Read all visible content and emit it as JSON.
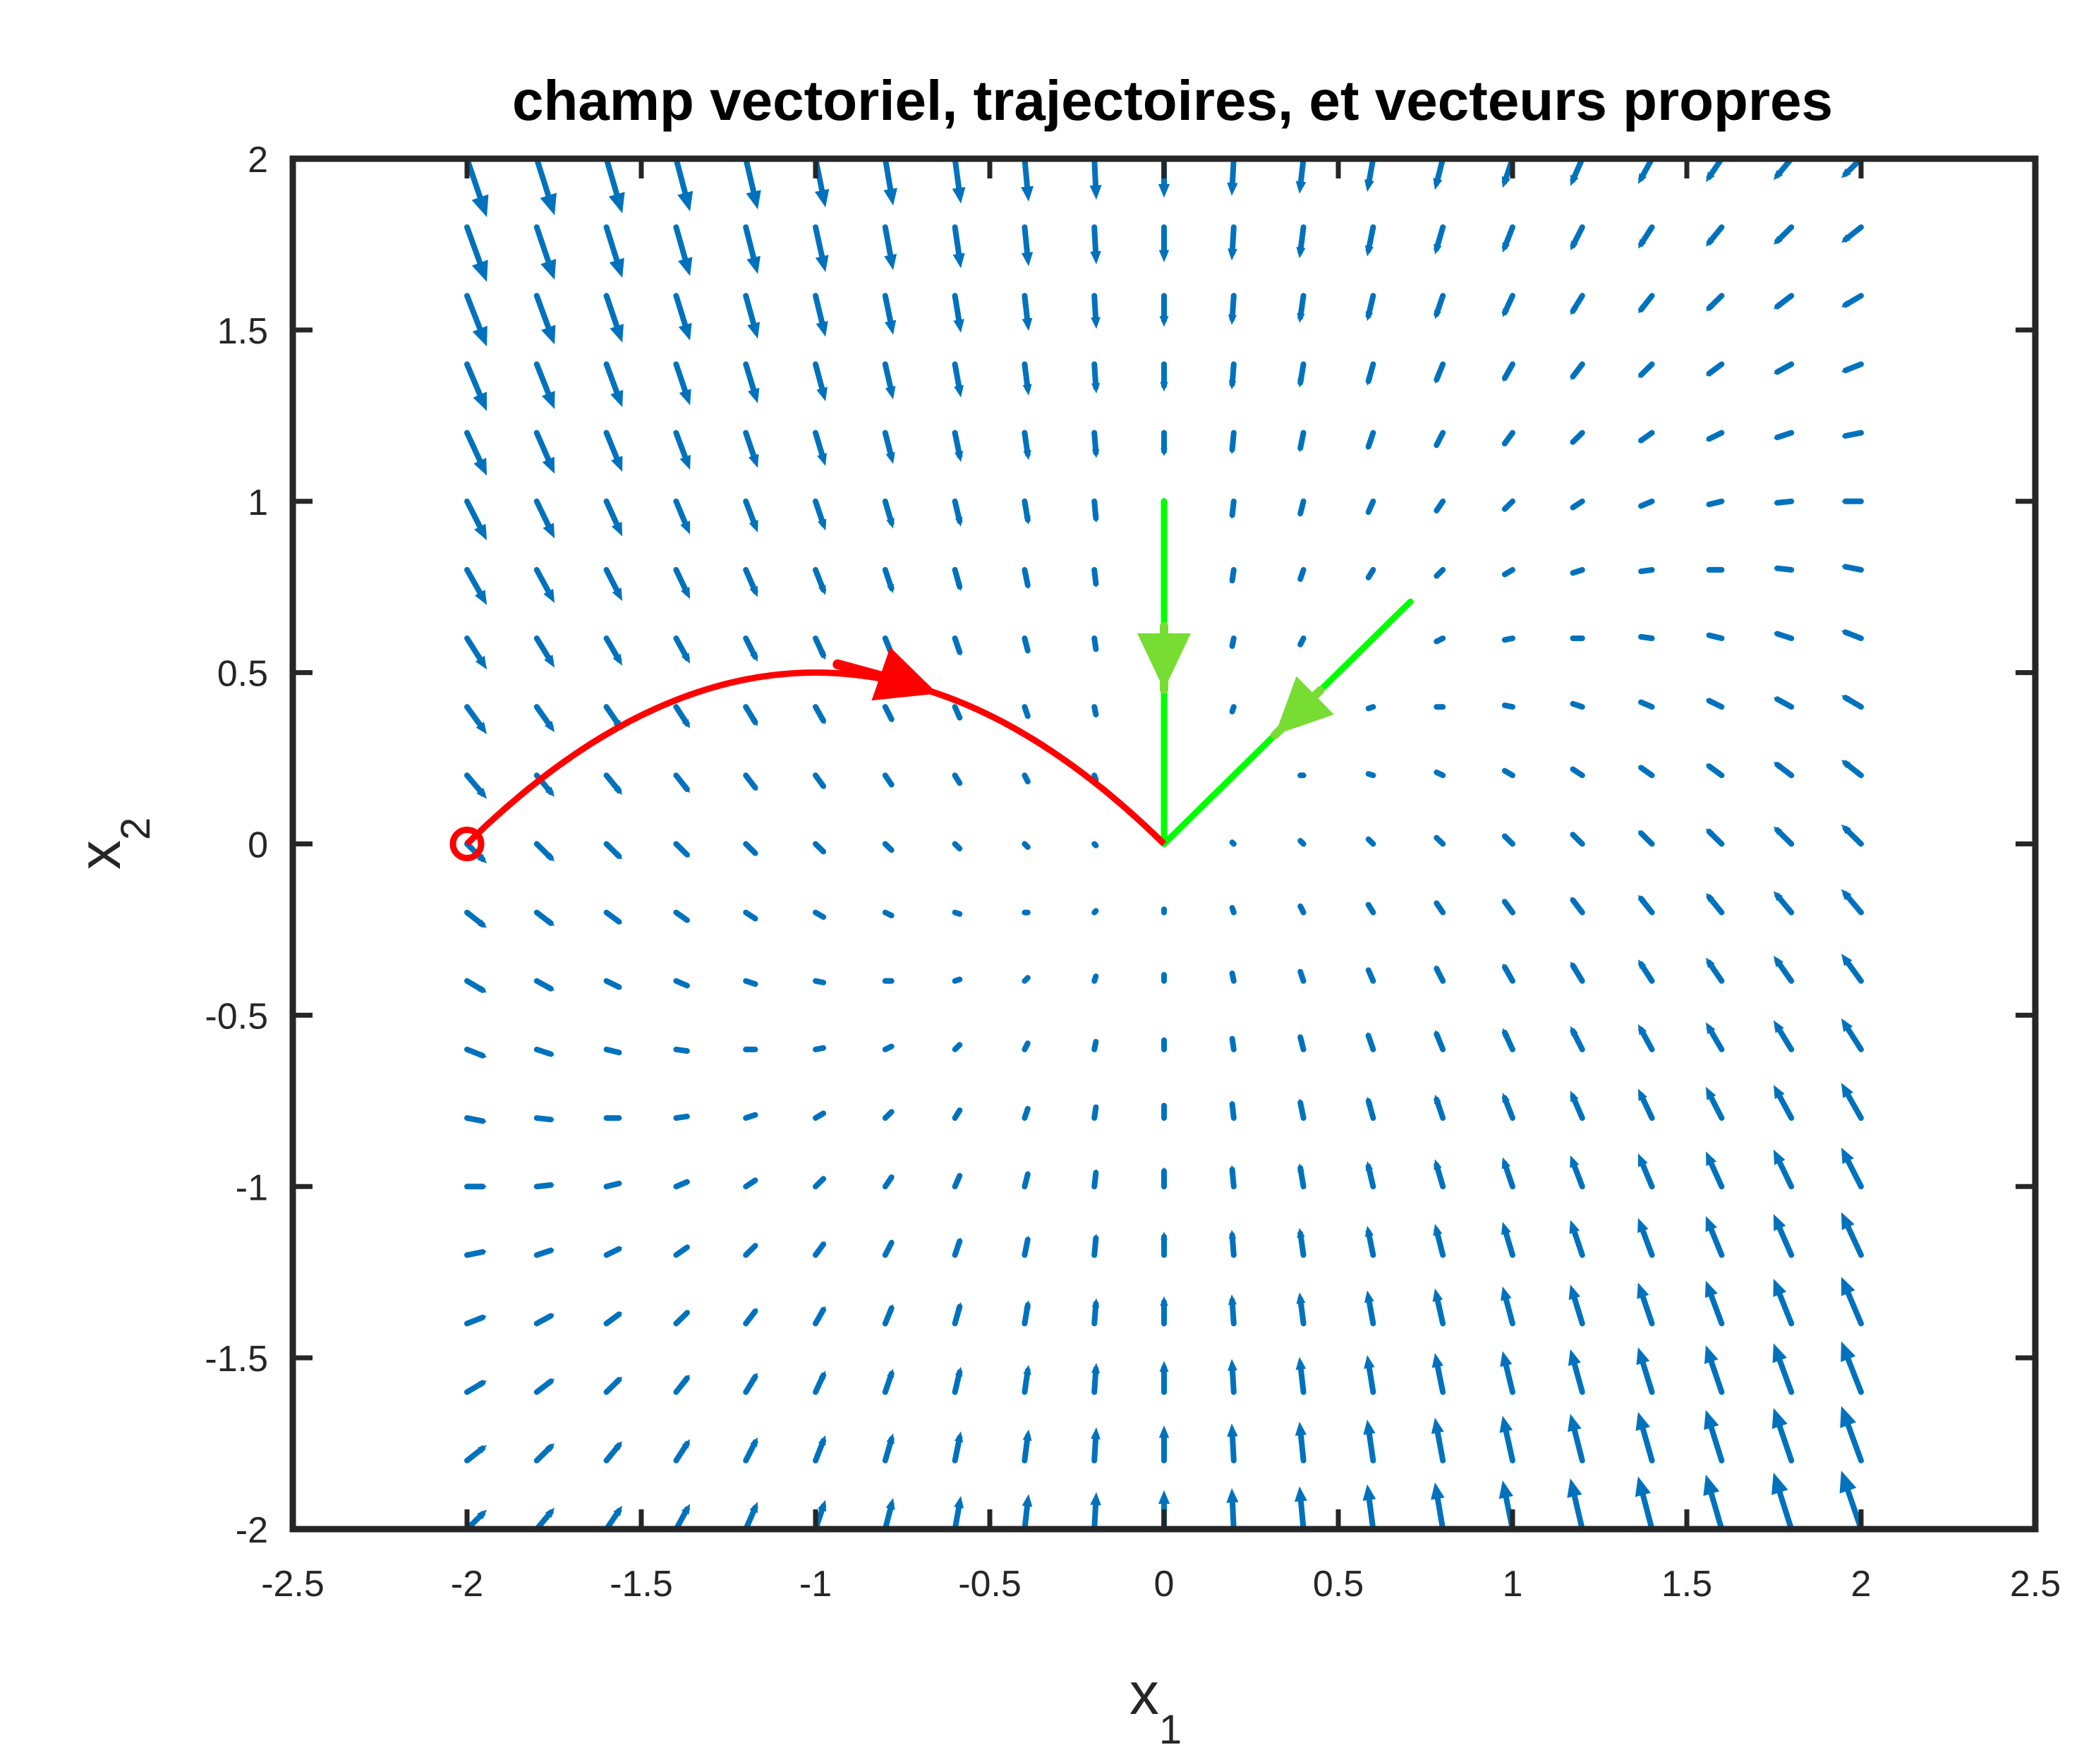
{
  "chart_data": {
    "type": "quiver",
    "title": "champ vectoriel, trajectoires, et vecteurs propres",
    "xlabel": {
      "base": "x",
      "sub": "1"
    },
    "ylabel": {
      "base": "x",
      "sub": "2"
    },
    "xlim": [
      -2.5,
      2.5
    ],
    "ylim": [
      -2,
      2
    ],
    "xticks": [
      -2.5,
      -2,
      -1.5,
      -1,
      -0.5,
      0,
      0.5,
      1,
      1.5,
      2,
      2.5
    ],
    "xtick_labels": [
      "-2.5",
      "-2",
      "-1.5",
      "-1",
      "-0.5",
      "0",
      "0.5",
      "1",
      "1.5",
      "2",
      "2.5"
    ],
    "yticks": [
      -2,
      -1.5,
      -1,
      -0.5,
      0,
      0.5,
      1,
      1.5,
      2
    ],
    "ytick_labels": [
      "-2",
      "-1.5",
      "-1",
      "-0.5",
      "0",
      "0.5",
      "1",
      "1.5",
      "2"
    ],
    "grid": false,
    "vector_field": {
      "system": {
        "dx1": "-x1",
        "dx2": "x1 - 2*x2"
      },
      "x_range": [
        -2,
        2
      ],
      "y_range": [
        -2,
        2
      ],
      "spacing": 0.2,
      "color": "#0072BD"
    },
    "trajectory": {
      "color": "#FF0000",
      "start": [
        -2,
        0
      ],
      "end": [
        0,
        0
      ],
      "direction_arrow_x": -0.65
    },
    "eigenvectors": {
      "color": "#00FF00",
      "arrow_color": "#77DD33",
      "vectors": [
        {
          "from": [
            0,
            1
          ],
          "to": [
            0,
            0
          ]
        },
        {
          "from": [
            0.707,
            0.707
          ],
          "to": [
            0,
            0
          ]
        }
      ]
    }
  }
}
